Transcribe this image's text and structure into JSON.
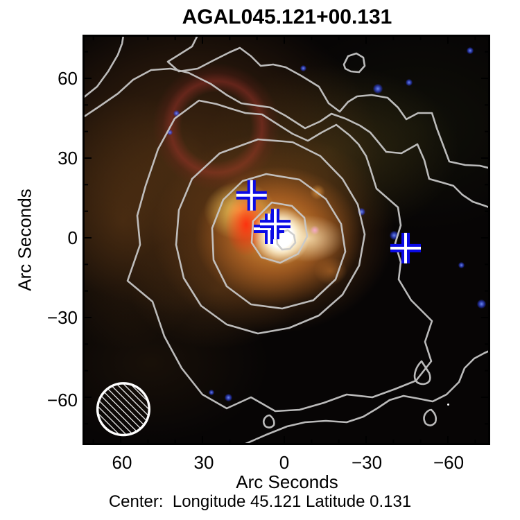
{
  "title": "AGAL045.121+00.131",
  "axes": {
    "x": {
      "label": "Arc Seconds",
      "ticks": [
        "60",
        "30",
        "0",
        "−30",
        "−60"
      ]
    },
    "y": {
      "label": "Arc Seconds",
      "ticks": [
        "60",
        "30",
        "0",
        "−30",
        "−60"
      ]
    }
  },
  "caption": "Center:  Longitude 45.121 Latitude 0.131",
  "chart_data": {
    "type": "image-overlay",
    "title": "AGAL045.121+00.131",
    "xlabel": "Arc Seconds",
    "ylabel": "Arc Seconds",
    "xlim": [
      75,
      -75
    ],
    "ylim": [
      -77,
      76
    ],
    "x_ticks": [
      60,
      30,
      0,
      -30,
      -60
    ],
    "y_ticks": [
      60,
      30,
      0,
      -30,
      -60
    ],
    "x_axis_reversed": true,
    "minor_tick_step_arcsec": 10,
    "image_description": "Three-color composite of dust clump AGAL045.121+00.131: bright white/yellow core at center, red knot west of core, diffuse orange-brown nebulosity with reddish arc to the northwest, faint blue point sources scattered over dark background",
    "contours": {
      "color": "#cccccc",
      "style": "solid",
      "nested_levels_visible": 6
    },
    "markers": {
      "symbol": "plus",
      "color": "#0a0ae6",
      "inner_stripe_color": "#ffffff",
      "positions_arcsec": [
        {
          "x": 12,
          "y": 16
        },
        {
          "x": 5.6,
          "y": 3.4
        },
        {
          "x": 3.3,
          "y": 5.2
        },
        {
          "x": -44.5,
          "y": -3.9
        }
      ]
    },
    "beam": {
      "shape": "hatched-circle",
      "x_arcsec": 59,
      "y_arcsec": -64.5,
      "radius_arcsec": 9.6,
      "color": "#ffffff"
    }
  }
}
